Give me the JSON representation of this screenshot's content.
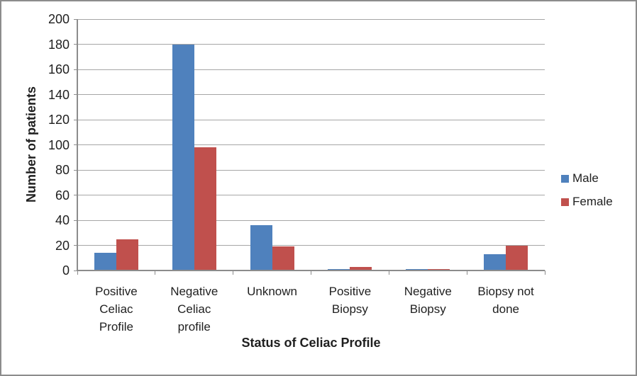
{
  "chart_data": {
    "type": "bar",
    "title": "",
    "categories": [
      "Positive Celiac Profile",
      "Negative Celiac profile",
      "Unknown",
      "Positive Biopsy",
      "Negative Biopsy",
      "Biopsy not done"
    ],
    "category_label_lines": [
      [
        "Positive",
        "Celiac",
        "Profile"
      ],
      [
        "Negative",
        "Celiac",
        "profile"
      ],
      [
        "Unknown"
      ],
      [
        "Positive",
        "Biopsy"
      ],
      [
        "Negative",
        "Biopsy"
      ],
      [
        "Biopsy not",
        "done"
      ]
    ],
    "series": [
      {
        "name": "Male",
        "color": "#4F81BD",
        "values": [
          14,
          180,
          36,
          1,
          1,
          13
        ]
      },
      {
        "name": "Female",
        "color": "#C0504D",
        "values": [
          25,
          98,
          19,
          3,
          1,
          20
        ]
      }
    ],
    "xlabel": "Status of Celiac Profile",
    "ylabel": "Number of patients",
    "ylim": [
      0,
      200
    ],
    "ytick_step": 20,
    "yticks": [
      0,
      20,
      40,
      60,
      80,
      100,
      120,
      140,
      160,
      180,
      200
    ],
    "grid": "horizontal",
    "legend_position": "right",
    "grid_color": "#A6A6A6",
    "axis_color": "#8C8C8C",
    "text_color": "#1F1F1F",
    "border_color": "#8C8C8C",
    "background": "#FFFFFF"
  }
}
